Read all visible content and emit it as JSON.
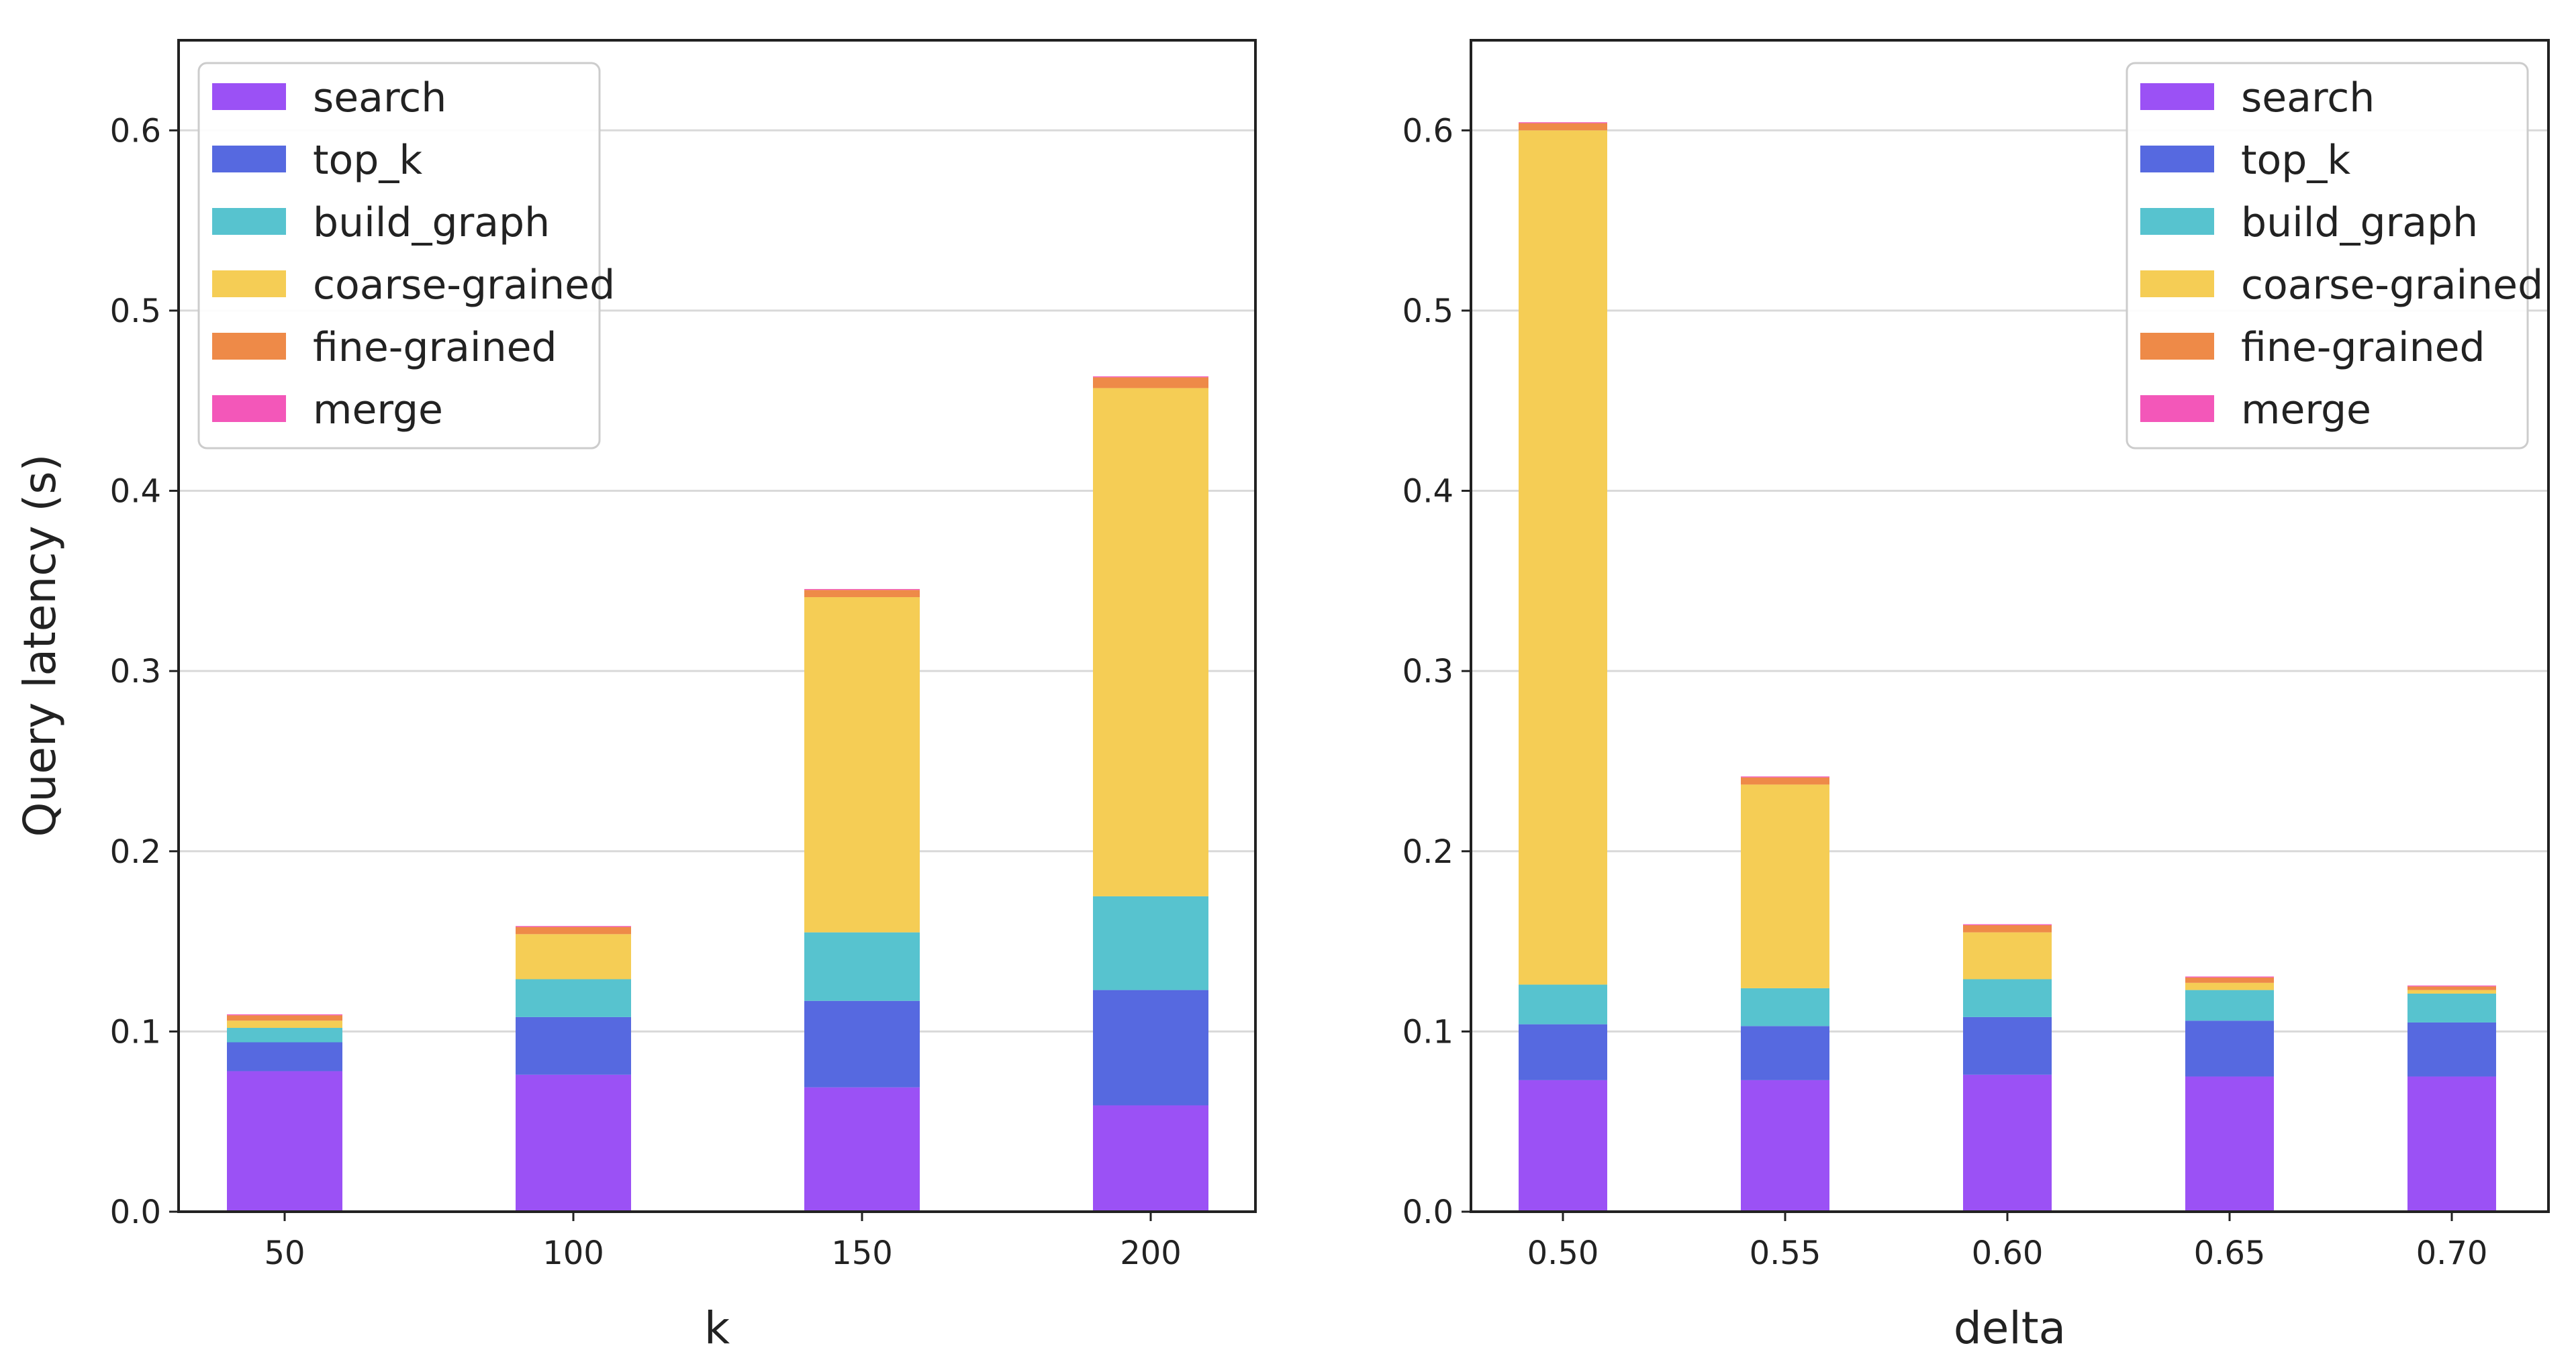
{
  "figure": {
    "ylabel": "Query latency (s)"
  },
  "legend_labels": [
    "search",
    "top_k",
    "build_graph",
    "coarse-grained",
    "fine-grained",
    "merge"
  ],
  "colors": {
    "search": "#9b51f5",
    "top_k": "#5669e0",
    "build_graph": "#57c3cf",
    "coarse-grained": "#f5cd55",
    "fine-grained": "#ee8a48",
    "merge": "#f357b9",
    "grid": "#d9d9d9",
    "axis": "#222222"
  },
  "chart_data": [
    {
      "type": "bar",
      "stacked": true,
      "title": "",
      "xlabel": "k",
      "ylabel": "Query latency (s)",
      "ylim": [
        0,
        0.65
      ],
      "yticks": [
        "0.0",
        "0.1",
        "0.2",
        "0.3",
        "0.4",
        "0.5",
        "0.6"
      ],
      "categories": [
        "50",
        "100",
        "150",
        "200"
      ],
      "legend_position": "top-left",
      "grid": true,
      "series": [
        {
          "name": "search",
          "values": [
            0.078,
            0.076,
            0.069,
            0.059
          ]
        },
        {
          "name": "top_k",
          "values": [
            0.016,
            0.032,
            0.048,
            0.064
          ]
        },
        {
          "name": "build_graph",
          "values": [
            0.008,
            0.021,
            0.038,
            0.052
          ]
        },
        {
          "name": "coarse-grained",
          "values": [
            0.004,
            0.025,
            0.186,
            0.282
          ]
        },
        {
          "name": "fine-grained",
          "values": [
            0.003,
            0.004,
            0.004,
            0.006
          ]
        },
        {
          "name": "merge",
          "values": [
            0.0005,
            0.0005,
            0.0005,
            0.0005
          ]
        }
      ]
    },
    {
      "type": "bar",
      "stacked": true,
      "title": "",
      "xlabel": "delta",
      "ylabel": "",
      "ylim": [
        0,
        0.65
      ],
      "yticks": [
        "0.0",
        "0.1",
        "0.2",
        "0.3",
        "0.4",
        "0.5",
        "0.6"
      ],
      "categories": [
        "0.50",
        "0.55",
        "0.60",
        "0.65",
        "0.70"
      ],
      "legend_position": "top-right",
      "grid": true,
      "series": [
        {
          "name": "search",
          "values": [
            0.073,
            0.073,
            0.076,
            0.075,
            0.075
          ]
        },
        {
          "name": "top_k",
          "values": [
            0.031,
            0.03,
            0.032,
            0.031,
            0.03
          ]
        },
        {
          "name": "build_graph",
          "values": [
            0.022,
            0.021,
            0.021,
            0.017,
            0.016
          ]
        },
        {
          "name": "coarse-grained",
          "values": [
            0.474,
            0.113,
            0.026,
            0.004,
            0.002
          ]
        },
        {
          "name": "fine-grained",
          "values": [
            0.004,
            0.004,
            0.004,
            0.003,
            0.002
          ]
        },
        {
          "name": "merge",
          "values": [
            0.0005,
            0.0005,
            0.0005,
            0.0005,
            0.0005
          ]
        }
      ]
    }
  ]
}
